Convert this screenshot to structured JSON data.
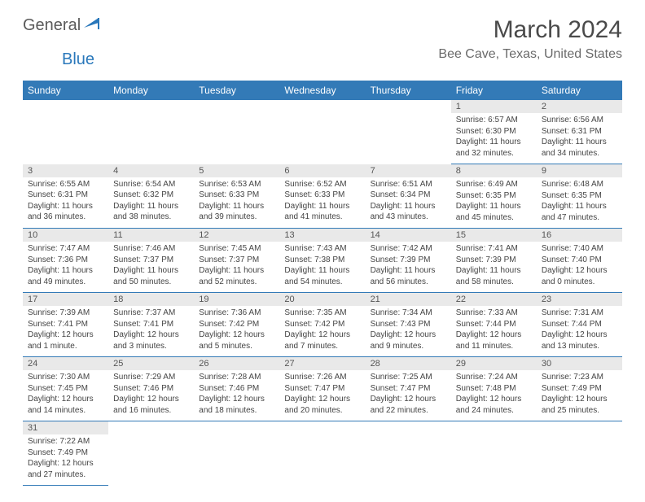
{
  "logo": {
    "text1": "General",
    "text2": "Blue"
  },
  "title": "March 2024",
  "location": "Bee Cave, Texas, United States",
  "header_color": "#337ab7",
  "daynum_bg": "#e9e9e9",
  "days": [
    "Sunday",
    "Monday",
    "Tuesday",
    "Wednesday",
    "Thursday",
    "Friday",
    "Saturday"
  ],
  "weeks": [
    [
      null,
      null,
      null,
      null,
      null,
      {
        "n": "1",
        "sr": "6:57 AM",
        "ss": "6:30 PM",
        "dl": "11 hours and 32 minutes."
      },
      {
        "n": "2",
        "sr": "6:56 AM",
        "ss": "6:31 PM",
        "dl": "11 hours and 34 minutes."
      }
    ],
    [
      {
        "n": "3",
        "sr": "6:55 AM",
        "ss": "6:31 PM",
        "dl": "11 hours and 36 minutes."
      },
      {
        "n": "4",
        "sr": "6:54 AM",
        "ss": "6:32 PM",
        "dl": "11 hours and 38 minutes."
      },
      {
        "n": "5",
        "sr": "6:53 AM",
        "ss": "6:33 PM",
        "dl": "11 hours and 39 minutes."
      },
      {
        "n": "6",
        "sr": "6:52 AM",
        "ss": "6:33 PM",
        "dl": "11 hours and 41 minutes."
      },
      {
        "n": "7",
        "sr": "6:51 AM",
        "ss": "6:34 PM",
        "dl": "11 hours and 43 minutes."
      },
      {
        "n": "8",
        "sr": "6:49 AM",
        "ss": "6:35 PM",
        "dl": "11 hours and 45 minutes."
      },
      {
        "n": "9",
        "sr": "6:48 AM",
        "ss": "6:35 PM",
        "dl": "11 hours and 47 minutes."
      }
    ],
    [
      {
        "n": "10",
        "sr": "7:47 AM",
        "ss": "7:36 PM",
        "dl": "11 hours and 49 minutes."
      },
      {
        "n": "11",
        "sr": "7:46 AM",
        "ss": "7:37 PM",
        "dl": "11 hours and 50 minutes."
      },
      {
        "n": "12",
        "sr": "7:45 AM",
        "ss": "7:37 PM",
        "dl": "11 hours and 52 minutes."
      },
      {
        "n": "13",
        "sr": "7:43 AM",
        "ss": "7:38 PM",
        "dl": "11 hours and 54 minutes."
      },
      {
        "n": "14",
        "sr": "7:42 AM",
        "ss": "7:39 PM",
        "dl": "11 hours and 56 minutes."
      },
      {
        "n": "15",
        "sr": "7:41 AM",
        "ss": "7:39 PM",
        "dl": "11 hours and 58 minutes."
      },
      {
        "n": "16",
        "sr": "7:40 AM",
        "ss": "7:40 PM",
        "dl": "12 hours and 0 minutes."
      }
    ],
    [
      {
        "n": "17",
        "sr": "7:39 AM",
        "ss": "7:41 PM",
        "dl": "12 hours and 1 minute."
      },
      {
        "n": "18",
        "sr": "7:37 AM",
        "ss": "7:41 PM",
        "dl": "12 hours and 3 minutes."
      },
      {
        "n": "19",
        "sr": "7:36 AM",
        "ss": "7:42 PM",
        "dl": "12 hours and 5 minutes."
      },
      {
        "n": "20",
        "sr": "7:35 AM",
        "ss": "7:42 PM",
        "dl": "12 hours and 7 minutes."
      },
      {
        "n": "21",
        "sr": "7:34 AM",
        "ss": "7:43 PM",
        "dl": "12 hours and 9 minutes."
      },
      {
        "n": "22",
        "sr": "7:33 AM",
        "ss": "7:44 PM",
        "dl": "12 hours and 11 minutes."
      },
      {
        "n": "23",
        "sr": "7:31 AM",
        "ss": "7:44 PM",
        "dl": "12 hours and 13 minutes."
      }
    ],
    [
      {
        "n": "24",
        "sr": "7:30 AM",
        "ss": "7:45 PM",
        "dl": "12 hours and 14 minutes."
      },
      {
        "n": "25",
        "sr": "7:29 AM",
        "ss": "7:46 PM",
        "dl": "12 hours and 16 minutes."
      },
      {
        "n": "26",
        "sr": "7:28 AM",
        "ss": "7:46 PM",
        "dl": "12 hours and 18 minutes."
      },
      {
        "n": "27",
        "sr": "7:26 AM",
        "ss": "7:47 PM",
        "dl": "12 hours and 20 minutes."
      },
      {
        "n": "28",
        "sr": "7:25 AM",
        "ss": "7:47 PM",
        "dl": "12 hours and 22 minutes."
      },
      {
        "n": "29",
        "sr": "7:24 AM",
        "ss": "7:48 PM",
        "dl": "12 hours and 24 minutes."
      },
      {
        "n": "30",
        "sr": "7:23 AM",
        "ss": "7:49 PM",
        "dl": "12 hours and 25 minutes."
      }
    ],
    [
      {
        "n": "31",
        "sr": "7:22 AM",
        "ss": "7:49 PM",
        "dl": "12 hours and 27 minutes."
      },
      null,
      null,
      null,
      null,
      null,
      null
    ]
  ],
  "labels": {
    "sunrise": "Sunrise:",
    "sunset": "Sunset:",
    "daylight": "Daylight:"
  }
}
